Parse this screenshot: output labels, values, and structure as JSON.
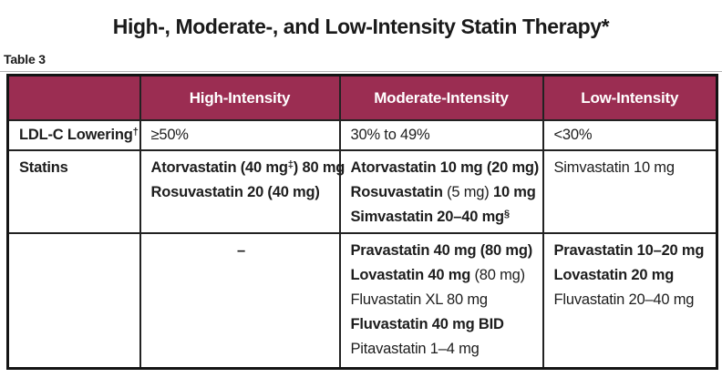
{
  "title": "High-, Moderate-, and Low-Intensity Statin Therapy*",
  "table_label": "Table 3",
  "colors": {
    "header_bg": "#9B2D52",
    "header_text": "#FFFFFF",
    "outer_border": "#141414",
    "grid_border": "#222222",
    "text": "#1D1D1D",
    "rule": "#B3B3B3"
  },
  "table": {
    "column_keys": [
      "row-label",
      "high-intensity",
      "moderate-intensity",
      "low-intensity"
    ],
    "header": [
      "",
      "High-Intensity",
      "Moderate-Intensity",
      "Low-Intensity"
    ],
    "rows": [
      {
        "name": "ldl-c-lowering",
        "cells": [
          {
            "align": "left",
            "lines": [
              [
                {
                  "t": "LDL-C Lowering",
                  "b": true
                },
                {
                  "t": "†",
                  "b": true,
                  "sup": true
                }
              ]
            ]
          },
          {
            "align": "left",
            "lines": [
              [
                {
                  "t": "≥50%"
                }
              ]
            ]
          },
          {
            "align": "left",
            "lines": [
              [
                {
                  "t": "30% to 49%"
                }
              ]
            ]
          },
          {
            "align": "left",
            "lines": [
              [
                {
                  "t": "<30%"
                }
              ]
            ]
          }
        ]
      },
      {
        "name": "statins-primary",
        "cells": [
          {
            "align": "left",
            "lines": [
              [
                {
                  "t": "Statins",
                  "b": true
                }
              ]
            ]
          },
          {
            "align": "left",
            "lines": [
              [
                {
                  "t": "Atorvastatin (40 mg",
                  "b": true
                },
                {
                  "t": "‡",
                  "b": true,
                  "sup": true
                },
                {
                  "t": ") 80 mg",
                  "b": true
                }
              ],
              [
                {
                  "t": "Rosuvastatin 20 (40 mg)",
                  "b": true
                }
              ]
            ]
          },
          {
            "align": "left",
            "lines": [
              [
                {
                  "t": "Atorvastatin 10 mg (20 mg)",
                  "b": true
                }
              ],
              [
                {
                  "t": "Rosuvastatin ",
                  "b": true
                },
                {
                  "t": "(5 mg)"
                },
                {
                  "t": " 10 mg",
                  "b": true
                }
              ],
              [
                {
                  "t": "Simvastatin 20–40 mg",
                  "b": true
                },
                {
                  "t": "§",
                  "b": true,
                  "sup": true
                }
              ]
            ]
          },
          {
            "align": "left",
            "lines": [
              [
                {
                  "t": "Simvastatin 10 mg"
                }
              ]
            ]
          }
        ]
      },
      {
        "name": "statins-secondary",
        "cells": [
          {
            "align": "left",
            "lines": []
          },
          {
            "align": "center",
            "lines": [
              [
                {
                  "t": "–",
                  "b": true
                }
              ]
            ]
          },
          {
            "align": "left",
            "lines": [
              [
                {
                  "t": "Pravastatin 40 mg (80 mg)",
                  "b": true
                }
              ],
              [
                {
                  "t": "Lovastatin 40 mg ",
                  "b": true
                },
                {
                  "t": "(80 mg)"
                }
              ],
              [
                {
                  "t": "Fluvastatin XL 80 mg"
                }
              ],
              [
                {
                  "t": "Fluvastatin 40 mg BID",
                  "b": true
                }
              ],
              [
                {
                  "t": "Pitavastatin 1–4 mg"
                }
              ]
            ]
          },
          {
            "align": "left",
            "lines": [
              [
                {
                  "t": "Pravastatin 10–20 mg",
                  "b": true
                }
              ],
              [
                {
                  "t": "Lovastatin 20 mg",
                  "b": true
                }
              ],
              [
                {
                  "t": "Fluvastatin 20–40 mg"
                }
              ]
            ]
          }
        ]
      }
    ]
  }
}
